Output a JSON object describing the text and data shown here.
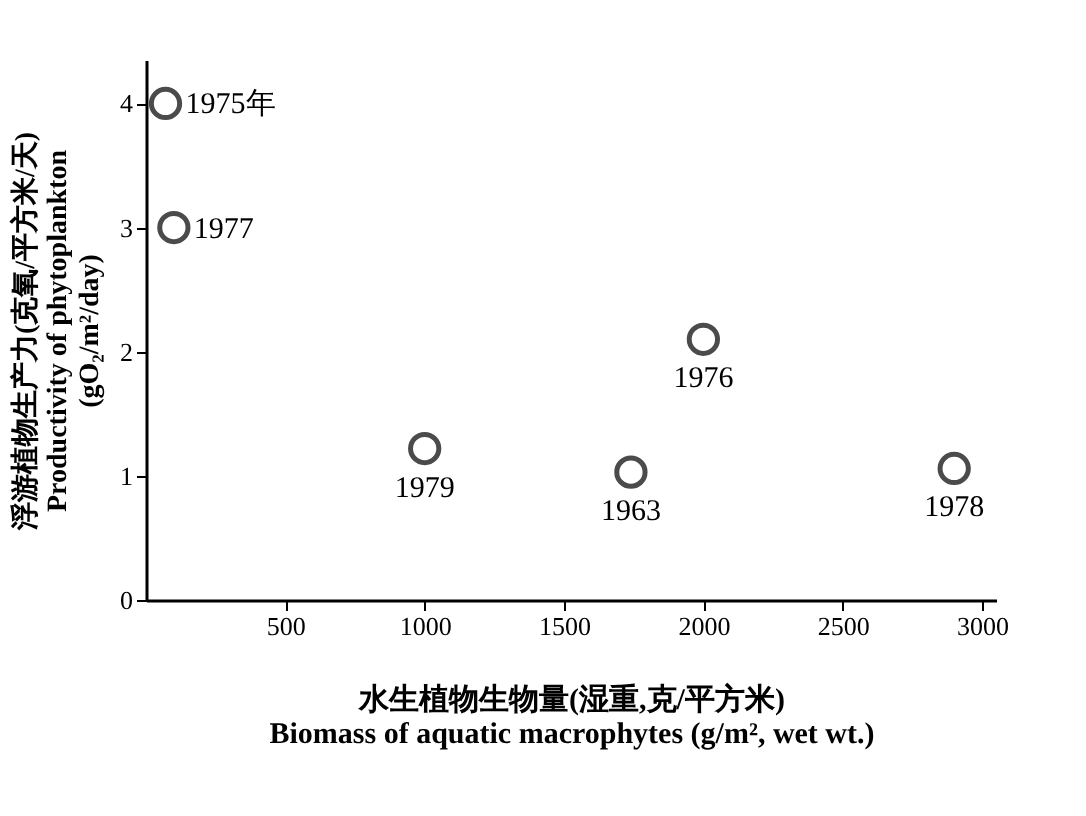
{
  "chart_data": {
    "type": "scatter",
    "xlabel": "水生植物生物量(湿重,克/平方米)\nBiomass of aquatic macrophytes (g/m², wet wt.)",
    "ylabel": "浮游植物生产力(克氧/平方米/天)\nProductivity of phytoplankton\n(gO₂/m²/day)",
    "x": [
      70,
      100,
      1000,
      1740,
      2000,
      2900
    ],
    "values": [
      4,
      3,
      1.22,
      1.03,
      2.1,
      1.06
    ],
    "annotations": [
      {
        "text": "1975年",
        "x": 70,
        "y": 4
      },
      {
        "text": "1977",
        "x": 100,
        "y": 3
      },
      {
        "text": "1979",
        "x": 1000,
        "y": 1.22
      },
      {
        "text": "1963",
        "x": 1740,
        "y": 1.03
      },
      {
        "text": "1976",
        "x": 2000,
        "y": 2.1
      },
      {
        "text": "1978",
        "x": 2900,
        "y": 1.06
      }
    ],
    "color": "#000000",
    "marker": "circle",
    "grid": false,
    "xlim": [
      0,
      3050
    ],
    "xticks": [
      500,
      1000,
      1500,
      2000,
      2500,
      3000
    ],
    "ylim": [
      0,
      4.35
    ],
    "yticks": [
      0,
      1,
      2,
      3,
      4
    ]
  }
}
